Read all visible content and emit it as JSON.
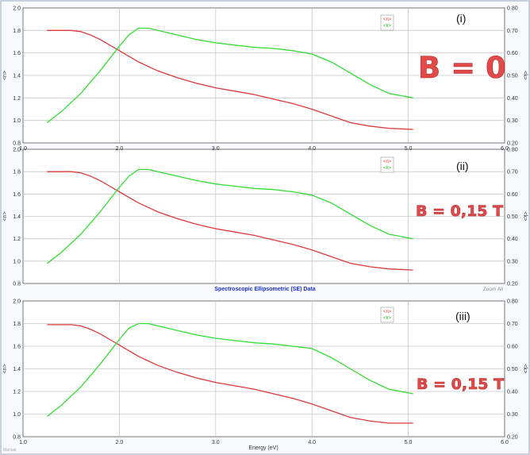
{
  "between_title": "Spectroscopic Ellipsometric (SE) Data",
  "zoom_label": "Zoom All",
  "corner_note": "Manual",
  "x_axis_label": "Energy (eV)",
  "colors": {
    "n": "#dd3a3a",
    "k": "#33dd33"
  },
  "chart_data": [
    {
      "type": "line",
      "panel_label": "(i)",
      "annotation": "B = 0",
      "legend": [
        "<n>",
        "<k>"
      ],
      "xlim": [
        1.0,
        6.0
      ],
      "x_ticks": [
        "1.0",
        "2.0",
        "3.0",
        "4.0",
        "5.0",
        "6.0"
      ],
      "ylabel_left": "<n>",
      "ylabel_right": "<k>",
      "ylim_left": [
        0.8,
        2.0
      ],
      "y_ticks_left": [
        "0.8",
        "1.0",
        "1.2",
        "1.4",
        "1.6",
        "1.8",
        "2.0"
      ],
      "ylim_right": [
        0.2,
        0.8
      ],
      "y_ticks_right": [
        "0.20",
        "0.30",
        "0.40",
        "0.50",
        "0.60",
        "0.70",
        "0.80"
      ],
      "grid": true,
      "series": [
        {
          "name": "<n>",
          "axis": "left",
          "x": [
            1.25,
            1.5,
            1.6,
            1.7,
            1.8,
            1.9,
            2.0,
            2.1,
            2.2,
            2.3,
            2.4,
            2.6,
            2.8,
            3.0,
            3.2,
            3.4,
            3.6,
            3.8,
            4.0,
            4.2,
            4.4,
            4.6,
            4.8,
            5.05
          ],
          "y": [
            1.8,
            1.8,
            1.79,
            1.76,
            1.72,
            1.67,
            1.62,
            1.57,
            1.52,
            1.48,
            1.44,
            1.38,
            1.33,
            1.29,
            1.26,
            1.23,
            1.19,
            1.15,
            1.1,
            1.04,
            0.98,
            0.95,
            0.93,
            0.92
          ]
        },
        {
          "name": "<k>",
          "axis": "right",
          "x": [
            1.25,
            1.4,
            1.6,
            1.8,
            2.0,
            2.1,
            2.2,
            2.3,
            2.4,
            2.6,
            2.8,
            3.0,
            3.2,
            3.4,
            3.6,
            3.8,
            4.0,
            4.2,
            4.4,
            4.6,
            4.8,
            5.05
          ],
          "y": [
            0.29,
            0.34,
            0.42,
            0.52,
            0.63,
            0.68,
            0.71,
            0.71,
            0.7,
            0.68,
            0.66,
            0.645,
            0.635,
            0.625,
            0.62,
            0.61,
            0.595,
            0.56,
            0.51,
            0.46,
            0.42,
            0.4
          ]
        }
      ]
    },
    {
      "type": "line",
      "panel_label": "(ii)",
      "annotation": "B = 0,15 T",
      "legend": [
        "<n>",
        "<k>"
      ],
      "xlim": [
        1.0,
        6.0
      ],
      "ylabel_left": "<n>",
      "ylabel_right": "<k>",
      "ylim_left": [
        0.8,
        2.0
      ],
      "y_ticks_left": [
        "0.8",
        "1.0",
        "1.2",
        "1.4",
        "1.6",
        "1.8",
        "2.0"
      ],
      "ylim_right": [
        0.2,
        0.8
      ],
      "y_ticks_right": [
        "0.20",
        "0.30",
        "0.40",
        "0.50",
        "0.60",
        "0.70",
        "0.80"
      ],
      "grid": true,
      "series": [
        {
          "name": "<n>",
          "axis": "left",
          "x": [
            1.25,
            1.5,
            1.6,
            1.7,
            1.8,
            1.9,
            2.0,
            2.1,
            2.2,
            2.3,
            2.4,
            2.6,
            2.8,
            3.0,
            3.2,
            3.4,
            3.6,
            3.8,
            4.0,
            4.2,
            4.4,
            4.6,
            4.8,
            5.05
          ],
          "y": [
            1.8,
            1.8,
            1.79,
            1.76,
            1.72,
            1.67,
            1.62,
            1.57,
            1.52,
            1.48,
            1.44,
            1.38,
            1.33,
            1.29,
            1.26,
            1.23,
            1.19,
            1.15,
            1.1,
            1.04,
            0.98,
            0.95,
            0.93,
            0.92
          ]
        },
        {
          "name": "<k>",
          "axis": "right",
          "x": [
            1.25,
            1.4,
            1.6,
            1.8,
            2.0,
            2.1,
            2.2,
            2.3,
            2.4,
            2.6,
            2.8,
            3.0,
            3.2,
            3.4,
            3.6,
            3.8,
            4.0,
            4.2,
            4.4,
            4.6,
            4.8,
            5.05
          ],
          "y": [
            0.29,
            0.34,
            0.42,
            0.52,
            0.63,
            0.68,
            0.71,
            0.71,
            0.7,
            0.68,
            0.66,
            0.645,
            0.635,
            0.625,
            0.62,
            0.61,
            0.595,
            0.56,
            0.51,
            0.46,
            0.42,
            0.4
          ]
        }
      ]
    },
    {
      "type": "line",
      "panel_label": "(iii)",
      "annotation": "B = 0,15 T",
      "legend": [
        "<n>",
        "<k>"
      ],
      "xlim": [
        1.0,
        6.0
      ],
      "x_ticks": [
        "1.0",
        "2.0",
        "3.0",
        "4.0",
        "5.0",
        "6.0"
      ],
      "ylabel_left": "<n>",
      "ylabel_right": "<k>",
      "ylim_left": [
        0.8,
        2.0
      ],
      "y_ticks_left": [
        "0.8",
        "1.0",
        "1.2",
        "1.4",
        "1.6",
        "1.8",
        "2.0"
      ],
      "ylim_right": [
        0.2,
        0.8
      ],
      "y_ticks_right": [
        "0.20",
        "0.30",
        "0.40",
        "0.50",
        "0.60",
        "0.70",
        "0.80"
      ],
      "grid": true,
      "series": [
        {
          "name": "<n>",
          "axis": "left",
          "x": [
            1.25,
            1.5,
            1.6,
            1.7,
            1.8,
            1.9,
            2.0,
            2.1,
            2.2,
            2.3,
            2.4,
            2.6,
            2.8,
            3.0,
            3.2,
            3.4,
            3.6,
            3.8,
            4.0,
            4.2,
            4.4,
            4.6,
            4.8,
            5.05
          ],
          "y": [
            1.79,
            1.79,
            1.78,
            1.75,
            1.71,
            1.66,
            1.61,
            1.56,
            1.51,
            1.47,
            1.43,
            1.37,
            1.32,
            1.28,
            1.25,
            1.22,
            1.18,
            1.14,
            1.09,
            1.03,
            0.97,
            0.94,
            0.92,
            0.92
          ]
        },
        {
          "name": "<k>",
          "axis": "right",
          "x": [
            1.25,
            1.4,
            1.6,
            1.8,
            2.0,
            2.1,
            2.2,
            2.3,
            2.4,
            2.6,
            2.8,
            3.0,
            3.2,
            3.4,
            3.6,
            3.8,
            4.0,
            4.2,
            4.4,
            4.6,
            4.8,
            5.05
          ],
          "y": [
            0.29,
            0.34,
            0.42,
            0.52,
            0.63,
            0.68,
            0.7,
            0.7,
            0.69,
            0.67,
            0.65,
            0.635,
            0.625,
            0.615,
            0.61,
            0.6,
            0.59,
            0.55,
            0.5,
            0.45,
            0.41,
            0.39
          ]
        }
      ]
    }
  ]
}
